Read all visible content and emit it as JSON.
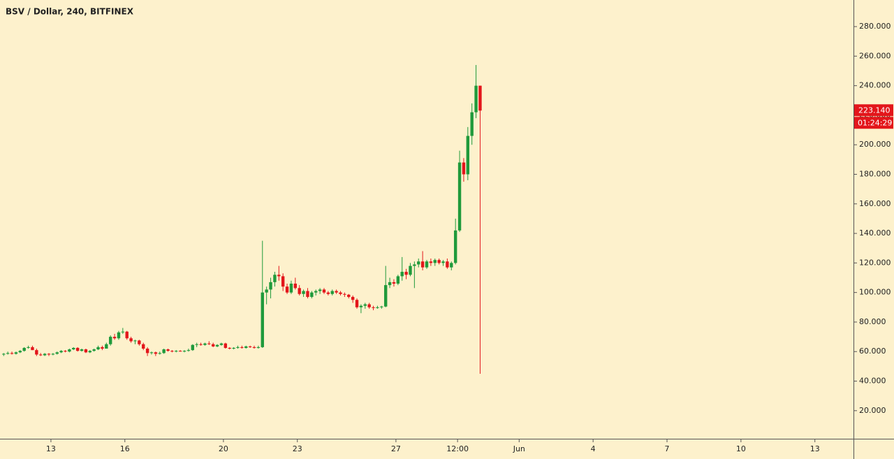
{
  "chart_data": {
    "type": "candlestick",
    "title": "BSV / Dollar, 240, BITFINEX",
    "categories": [
      null,
      null,
      null,
      null,
      null,
      null,
      null,
      null,
      null,
      null,
      null,
      null,
      null,
      null,
      null,
      null,
      null,
      null,
      null,
      null,
      null,
      null,
      null,
      null,
      null,
      null,
      null,
      null,
      null,
      null,
      null,
      null,
      null,
      null,
      null,
      null,
      null,
      null,
      null,
      null,
      null,
      null,
      null,
      null,
      null,
      null,
      null,
      null,
      null,
      null,
      null,
      null,
      null,
      null,
      null,
      null,
      null,
      null,
      null,
      null,
      null,
      null,
      null,
      null,
      null,
      null,
      null,
      null,
      null,
      null,
      null,
      null,
      null,
      null,
      null,
      null,
      null,
      null,
      null,
      null,
      null,
      null,
      null,
      null,
      null,
      null,
      null,
      null,
      null,
      null,
      null,
      null,
      null,
      null,
      null,
      null,
      null,
      null,
      null,
      null,
      null,
      null,
      null,
      null,
      null,
      null,
      null,
      null,
      null,
      null,
      null,
      null,
      null,
      null,
      null,
      null,
      null
    ],
    "open": [
      58,
      58.5,
      59,
      58.5,
      59.5,
      60.5,
      62.5,
      63,
      61,
      58,
      57.5,
      58.5,
      58,
      58.5,
      59.5,
      60.5,
      60,
      61.5,
      62.5,
      60.5,
      61.5,
      59.5,
      60.5,
      61.5,
      63,
      62,
      65,
      70,
      69,
      73,
      73.5,
      69,
      67,
      67.5,
      65,
      62,
      59,
      59.5,
      58.5,
      59,
      61.5,
      60.5,
      60,
      60.5,
      60,
      60.5,
      61,
      64.5,
      65,
      64.5,
      65.5,
      65,
      63.5,
      64.5,
      65.5,
      62.5,
      62,
      62.5,
      63,
      62.5,
      63.5,
      63,
      62.5,
      63,
      100,
      102,
      107,
      112,
      111,
      104,
      100,
      106,
      103,
      99,
      101,
      97,
      100,
      101,
      102,
      100,
      99,
      101,
      100,
      99,
      98.5,
      97,
      95,
      90,
      91,
      92,
      90,
      89.5,
      90,
      90.5,
      105,
      107,
      106,
      111,
      114,
      112,
      118,
      119,
      121,
      117,
      121,
      120,
      122,
      120,
      121,
      117,
      120,
      142,
      188,
      180,
      206,
      222,
      240
    ],
    "high": [
      59,
      60,
      60,
      60,
      61,
      63,
      64,
      64,
      62,
      59,
      59,
      59,
      59,
      60,
      61,
      61,
      62,
      63,
      63,
      62,
      62,
      61,
      62,
      64,
      64,
      66,
      71,
      72,
      74,
      76,
      74,
      70,
      68,
      68,
      66,
      63,
      60,
      60,
      60,
      62,
      62,
      61,
      61,
      61,
      61,
      62,
      65,
      66,
      66,
      66,
      67,
      66,
      65,
      66,
      66,
      63,
      63,
      64,
      64,
      64,
      64,
      64,
      64,
      135,
      104,
      110,
      114,
      118,
      113,
      106,
      108,
      110,
      105,
      102,
      103,
      101,
      102,
      103,
      103,
      101,
      102,
      102,
      101,
      100,
      99,
      98,
      96,
      92,
      93,
      93,
      91,
      91,
      91,
      118,
      110,
      109,
      112,
      124,
      116,
      120,
      121,
      123,
      128,
      122,
      123,
      123,
      123,
      122,
      123,
      121,
      150,
      196,
      191,
      212,
      228,
      254,
      240
    ],
    "low": [
      57,
      58,
      58,
      58,
      59,
      60,
      62,
      61,
      57,
      57,
      57,
      57,
      57.5,
      58,
      59,
      59.5,
      59.5,
      61,
      60,
      60,
      59,
      59,
      60,
      61,
      61,
      62,
      64,
      68,
      68,
      72,
      68,
      66,
      65,
      64,
      61,
      57,
      58,
      57,
      58,
      58.5,
      60,
      59.5,
      59.5,
      60,
      59.5,
      60,
      60.5,
      63,
      64,
      64,
      64.5,
      63,
      63,
      64,
      62,
      61.5,
      61.5,
      62,
      62,
      62,
      62.5,
      62,
      62,
      62.5,
      92,
      96,
      104,
      108,
      101,
      99,
      99,
      102,
      98,
      97,
      96,
      96,
      98,
      99,
      99,
      98,
      98,
      99,
      98,
      97,
      96,
      93,
      89,
      86,
      89,
      89,
      88,
      89,
      89,
      90,
      103,
      104,
      105,
      108,
      109,
      111,
      103,
      117,
      115,
      116,
      118,
      118,
      119,
      118,
      116,
      115,
      119,
      141,
      175,
      176,
      200,
      218,
      45
    ],
    "close": [
      58.5,
      59,
      58.5,
      59.5,
      60.5,
      62.5,
      63,
      61,
      58,
      57.5,
      58.5,
      58,
      58.5,
      59.5,
      60.5,
      60,
      61.5,
      62.5,
      60.5,
      61.5,
      59.5,
      60.5,
      61.5,
      63,
      62,
      65,
      70,
      69,
      73,
      73.5,
      69,
      67,
      67.5,
      65,
      62,
      59,
      59.5,
      58.5,
      59,
      61.5,
      60.5,
      60,
      60.5,
      60,
      60.5,
      61,
      64.5,
      65,
      64.5,
      65.5,
      65,
      63.5,
      64.5,
      65.5,
      62.5,
      62,
      62.5,
      63,
      62.5,
      63.5,
      63,
      62.5,
      63,
      100,
      102,
      107,
      112,
      111,
      104,
      100,
      106,
      103,
      99,
      101,
      97,
      100,
      101,
      102,
      100,
      99,
      101,
      100,
      99,
      98.5,
      97,
      95,
      90,
      91,
      92,
      90,
      89.5,
      90,
      90.5,
      105,
      107,
      106,
      111,
      114,
      112,
      118,
      119,
      121,
      117,
      121,
      120,
      122,
      120,
      121,
      117,
      120,
      142,
      188,
      180,
      206,
      222,
      240,
      223.14
    ],
    "up_color": "#1f9a3b",
    "down_color": "#e3161b",
    "last_label": "223.140",
    "countdown": "01:24:29",
    "xlim": [
      -0.9,
      206.9
    ],
    "xticks": [
      {
        "value": 11.5,
        "label": "13"
      },
      {
        "value": 29.5,
        "label": "16"
      },
      {
        "value": 53.5,
        "label": "20"
      },
      {
        "value": 71.5,
        "label": "23"
      },
      {
        "value": 95.5,
        "label": "27"
      },
      {
        "value": 110.5,
        "label": "12:00"
      },
      {
        "value": 125.5,
        "label": "Jun"
      },
      {
        "value": 143.5,
        "label": "4"
      },
      {
        "value": 161.5,
        "label": "7"
      },
      {
        "value": 179.5,
        "label": "10"
      },
      {
        "value": 197.5,
        "label": "13"
      }
    ],
    "ylim": [
      1,
      298
    ],
    "yticks": [
      {
        "value": 20,
        "label": "20.000"
      },
      {
        "value": 40,
        "label": "40.000"
      },
      {
        "value": 60,
        "label": "60.000"
      },
      {
        "value": 80,
        "label": "80.000"
      },
      {
        "value": 100,
        "label": "100.000"
      },
      {
        "value": 120,
        "label": "120.000"
      },
      {
        "value": 140,
        "label": "140.000"
      },
      {
        "value": 160,
        "label": "160.000"
      },
      {
        "value": 180,
        "label": "180.000"
      },
      {
        "value": 200,
        "label": "200.000"
      },
      {
        "value": 220,
        "label": "220.000"
      },
      {
        "value": 240,
        "label": "240.000"
      },
      {
        "value": 260,
        "label": "260.000"
      },
      {
        "value": 280,
        "label": "280.000"
      }
    ]
  }
}
